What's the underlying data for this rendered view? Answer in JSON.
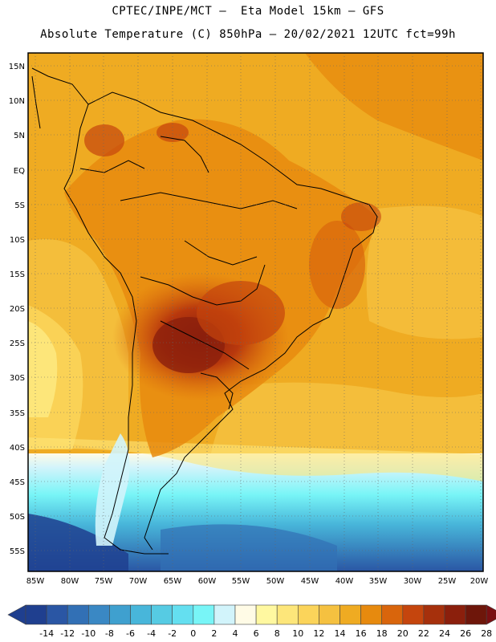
{
  "header": {
    "title_line1": "CPTEC/INPE/MCT –  Eta Model 15km – GFS",
    "title_line2": "Absolute Temperature (C) 850hPa – 20/02/2021 12UTC fct=99h"
  },
  "map": {
    "lat_ticks": [
      "15N",
      "10N",
      "5N",
      "EQ",
      "5S",
      "10S",
      "15S",
      "20S",
      "25S",
      "30S",
      "35S",
      "40S",
      "45S",
      "50S",
      "55S"
    ],
    "lon_ticks": [
      "85W",
      "80W",
      "75W",
      "70W",
      "65W",
      "60W",
      "55W",
      "50W",
      "45W",
      "40W",
      "35W",
      "30W",
      "25W",
      "20W"
    ]
  },
  "colorbar": {
    "labels": [
      "-14",
      "-12",
      "-10",
      "-8",
      "-6",
      "-4",
      "-2",
      "0",
      "2",
      "4",
      "6",
      "8",
      "10",
      "12",
      "14",
      "16",
      "18",
      "20",
      "22",
      "24",
      "26",
      "28"
    ],
    "colors": [
      "#1f3f8f",
      "#2a56a4",
      "#3270b5",
      "#3a88c4",
      "#3fa0cf",
      "#48b6da",
      "#56cbe3",
      "#64dff0",
      "#78f5f7",
      "#d2f4fb",
      "#fffbe6",
      "#fff8a0",
      "#fde67a",
      "#fbd45a",
      "#f5c140",
      "#efab22",
      "#e78a0e",
      "#d9650c",
      "#c5450d",
      "#a6300c",
      "#8b1f0c",
      "#6e160a"
    ]
  }
}
